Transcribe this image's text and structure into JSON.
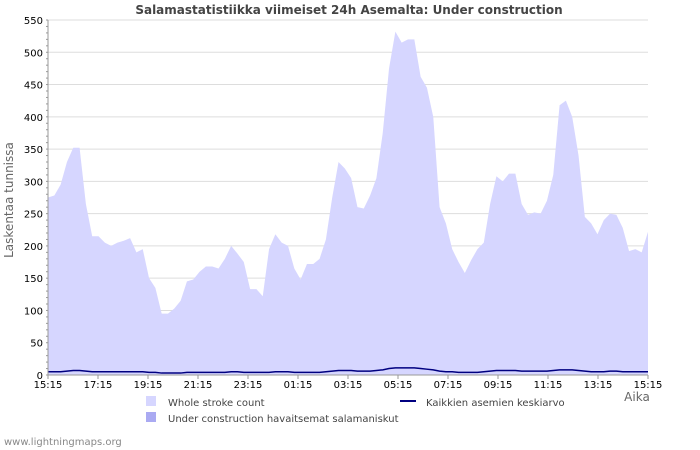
{
  "chart_data": {
    "type": "area",
    "title": "Salamastatistiikka viimeiset 24h Asemalta: Under construction",
    "xlabel": "Aika",
    "ylabel": "Laskentaa tunnissa",
    "ylim": [
      0,
      550
    ],
    "yticks": [
      0,
      50,
      100,
      150,
      200,
      250,
      300,
      350,
      400,
      450,
      500,
      550
    ],
    "xticks": [
      "15:15",
      "17:15",
      "19:15",
      "21:15",
      "23:15",
      "01:15",
      "03:15",
      "05:15",
      "07:15",
      "09:15",
      "11:15",
      "13:15",
      "15:15"
    ],
    "series": [
      {
        "name": "Whole stroke count",
        "color": "#d6d6ff",
        "values": [
          275,
          278,
          295,
          330,
          352,
          352,
          265,
          215,
          215,
          205,
          200,
          205,
          208,
          212,
          190,
          195,
          150,
          135,
          95,
          95,
          103,
          115,
          145,
          148,
          160,
          168,
          168,
          165,
          180,
          200,
          188,
          175,
          133,
          133,
          122,
          195,
          218,
          205,
          200,
          165,
          148,
          172,
          172,
          180,
          210,
          275,
          330,
          320,
          305,
          260,
          258,
          278,
          305,
          375,
          475,
          532,
          515,
          520,
          520,
          462,
          445,
          400,
          260,
          235,
          195,
          175,
          158,
          178,
          195,
          205,
          265,
          308,
          300,
          312,
          312,
          265,
          248,
          252,
          250,
          270,
          310,
          418,
          425,
          400,
          340,
          245,
          235,
          218,
          240,
          250,
          248,
          228,
          192,
          195,
          190,
          222
        ]
      },
      {
        "name": "Under construction havaitsemat salamaniskut",
        "color": "#aaaaf2",
        "values": [
          0
        ]
      },
      {
        "name": "Kaikkien asemien keskiarvo",
        "color": "#000080",
        "values": [
          5,
          5,
          5,
          6,
          7,
          7,
          6,
          5,
          5,
          5,
          5,
          5,
          5,
          5,
          5,
          5,
          4,
          4,
          3,
          3,
          3,
          3,
          4,
          4,
          4,
          4,
          4,
          4,
          4,
          5,
          5,
          4,
          4,
          4,
          4,
          4,
          5,
          5,
          5,
          4,
          4,
          4,
          4,
          4,
          5,
          6,
          7,
          7,
          7,
          6,
          6,
          6,
          7,
          8,
          10,
          11,
          11,
          11,
          11,
          10,
          9,
          8,
          6,
          5,
          5,
          4,
          4,
          4,
          4,
          5,
          6,
          7,
          7,
          7,
          7,
          6,
          6,
          6,
          6,
          6,
          7,
          8,
          8,
          8,
          7,
          6,
          5,
          5,
          5,
          6,
          6,
          5,
          5,
          5,
          5,
          5
        ]
      }
    ]
  },
  "footer": "www.lightningmaps.org"
}
